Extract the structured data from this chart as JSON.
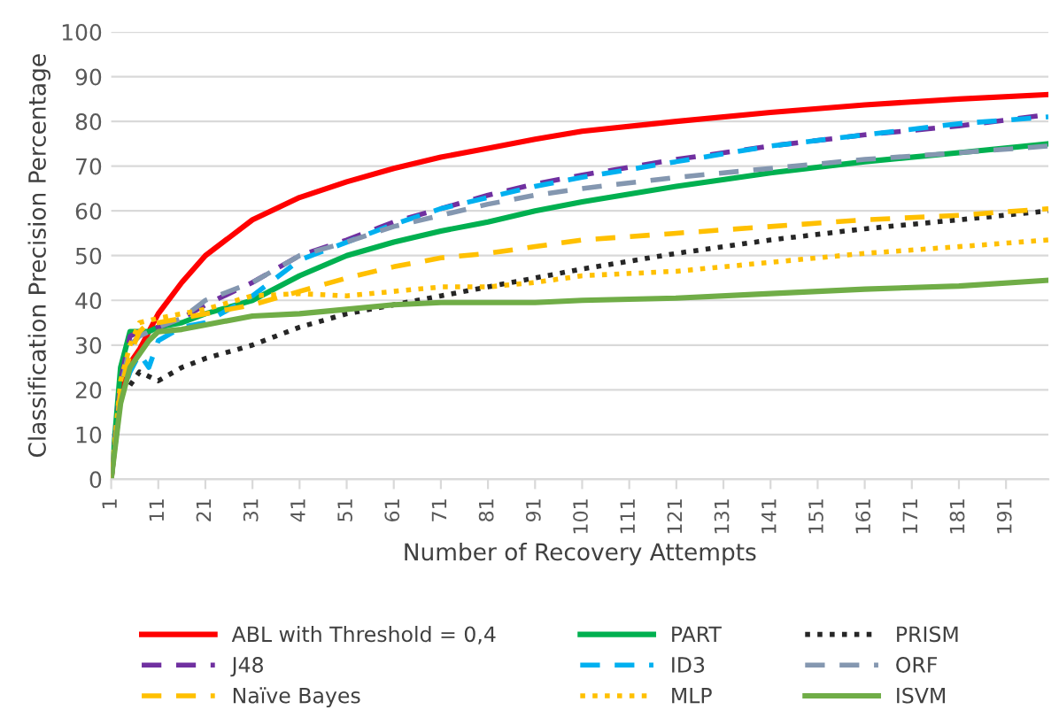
{
  "chart_data": {
    "type": "line",
    "xlabel": "Number of Recovery Attempts",
    "ylabel": "Classification Precision Percentage",
    "x": [
      1,
      3,
      5,
      7,
      9,
      11,
      16,
      21,
      31,
      41,
      51,
      61,
      71,
      81,
      91,
      101,
      121,
      141,
      161,
      181,
      200
    ],
    "xlim": [
      1,
      200
    ],
    "xticks": [
      1,
      11,
      21,
      31,
      41,
      51,
      61,
      71,
      81,
      91,
      101,
      111,
      121,
      131,
      141,
      151,
      161,
      171,
      181,
      191
    ],
    "ylim": [
      0,
      100
    ],
    "yticks": [
      0,
      10,
      20,
      30,
      40,
      50,
      60,
      70,
      80,
      90,
      100
    ],
    "grid": "y",
    "legend": "bottom",
    "series": [
      {
        "name": "ABL with Threshold = 0,4",
        "color": "#ff0000",
        "line_style": "solid",
        "values": [
          0,
          20,
          26,
          29,
          33,
          37,
          44,
          50,
          58,
          63,
          66.5,
          69.5,
          72,
          74,
          76,
          77.8,
          80,
          82,
          83.7,
          85,
          86
        ]
      },
      {
        "name": "PART",
        "color": "#00b050",
        "line_style": "solid",
        "values": [
          0,
          25,
          33,
          33,
          33,
          34,
          35,
          37,
          40,
          45.5,
          50,
          53,
          55.5,
          57.5,
          60,
          62,
          65.5,
          68.5,
          71,
          73,
          75
        ]
      },
      {
        "name": "PRISM",
        "color": "#262626",
        "line_style": "dotted",
        "values": [
          null,
          null,
          21,
          24,
          23,
          22,
          25,
          27,
          30,
          34,
          37,
          39,
          41,
          43,
          45,
          47,
          50.5,
          53.5,
          56,
          58,
          60
        ]
      },
      {
        "name": "J48",
        "color": "#7030a0",
        "line_style": "dashed",
        "values": [
          0,
          22,
          32,
          33,
          33,
          34,
          36,
          39,
          44,
          50,
          53.5,
          57.5,
          60.5,
          63.5,
          66,
          68,
          71.5,
          74.5,
          77,
          79,
          81.5
        ]
      },
      {
        "name": "ID3",
        "color": "#00b0f0",
        "line_style": "dashed",
        "values": [
          0,
          18,
          24,
          28,
          25,
          31,
          34,
          35,
          41,
          49,
          53,
          57,
          60.5,
          63,
          65.5,
          67.5,
          71,
          74.5,
          77,
          79.5,
          81
        ]
      },
      {
        "name": "ORF",
        "color": "#8497b0",
        "line_style": "dashed",
        "values": [
          0,
          20,
          30,
          32,
          33,
          34,
          36,
          40,
          44,
          50,
          53,
          56.5,
          59,
          61.5,
          63.5,
          65,
          67.5,
          69.5,
          71.5,
          73,
          74.5
        ]
      },
      {
        "name": "Naïve Bayes",
        "color": "#ffc000",
        "line_style": "dashed",
        "values": [
          0,
          20,
          28,
          33,
          35,
          35,
          36,
          37,
          39,
          42,
          45,
          47.5,
          49.5,
          50.5,
          52,
          53.5,
          55,
          56.5,
          58,
          59,
          60.5
        ]
      },
      {
        "name": "MLP",
        "color": "#ffc000",
        "line_style": "dotted",
        "values": [
          0,
          22,
          30,
          35,
          35.5,
          36,
          37,
          38,
          41,
          41.5,
          41,
          42,
          43,
          43,
          44,
          45.5,
          46.5,
          48.5,
          50.5,
          52,
          53.5
        ]
      },
      {
        "name": "ISVM",
        "color": "#70ad47",
        "line_style": "solid",
        "values": [
          0,
          17,
          25,
          28,
          31,
          33,
          33.5,
          34.5,
          36.5,
          37,
          38,
          39,
          39.5,
          39.5,
          39.5,
          40,
          40.5,
          41.5,
          42.5,
          43.2,
          44.5
        ]
      }
    ]
  }
}
